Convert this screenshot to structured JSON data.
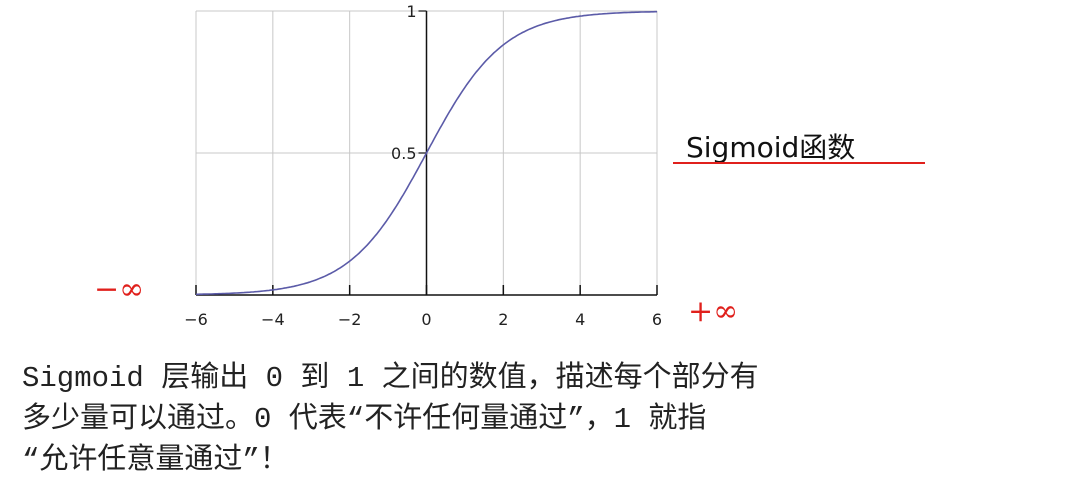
{
  "chart_data": {
    "type": "line",
    "title": "",
    "xlabel": "",
    "ylabel": "",
    "xlim": [
      -6,
      6
    ],
    "ylim": [
      0,
      1
    ],
    "grid": true,
    "x_ticks": [
      "−6",
      "−4",
      "−2",
      "0",
      "2",
      "4",
      "6"
    ],
    "x_tick_values": [
      -6,
      -4,
      -2,
      0,
      2,
      4,
      6
    ],
    "y_ticks": [
      "0.5",
      "1"
    ],
    "y_tick_values": [
      0.5,
      1
    ],
    "line_color": "#5b5ba8",
    "series": [
      {
        "x": [
          -6,
          -5.5,
          -5,
          -4.5,
          -4,
          -3.5,
          -3,
          -2.5,
          -2,
          -1.5,
          -1,
          -0.5,
          0,
          0.5,
          1,
          1.5,
          2,
          2.5,
          3,
          3.5,
          4,
          4.5,
          5,
          5.5,
          6
        ],
        "values": [
          0.0025,
          0.0041,
          0.0067,
          0.011,
          0.018,
          0.0293,
          0.0474,
          0.0759,
          0.1192,
          0.1824,
          0.2689,
          0.3775,
          0.5,
          0.6225,
          0.7311,
          0.8176,
          0.8808,
          0.9241,
          0.9526,
          0.9707,
          0.982,
          0.989,
          0.9933,
          0.9959,
          0.9975
        ]
      }
    ]
  },
  "annotation": {
    "label": "Sigmoid函数",
    "minus_infinity": "−∞",
    "plus_infinity": "+∞",
    "annotation_color": "#e0201c"
  },
  "caption": {
    "lines": [
      "Sigmoid 层输出 0 到 1 之间的数值，描述每个部分有",
      "多少量可以通过。0 代表“不许任何量通过”，1 就指",
      "“允许任意量通过”！"
    ]
  }
}
